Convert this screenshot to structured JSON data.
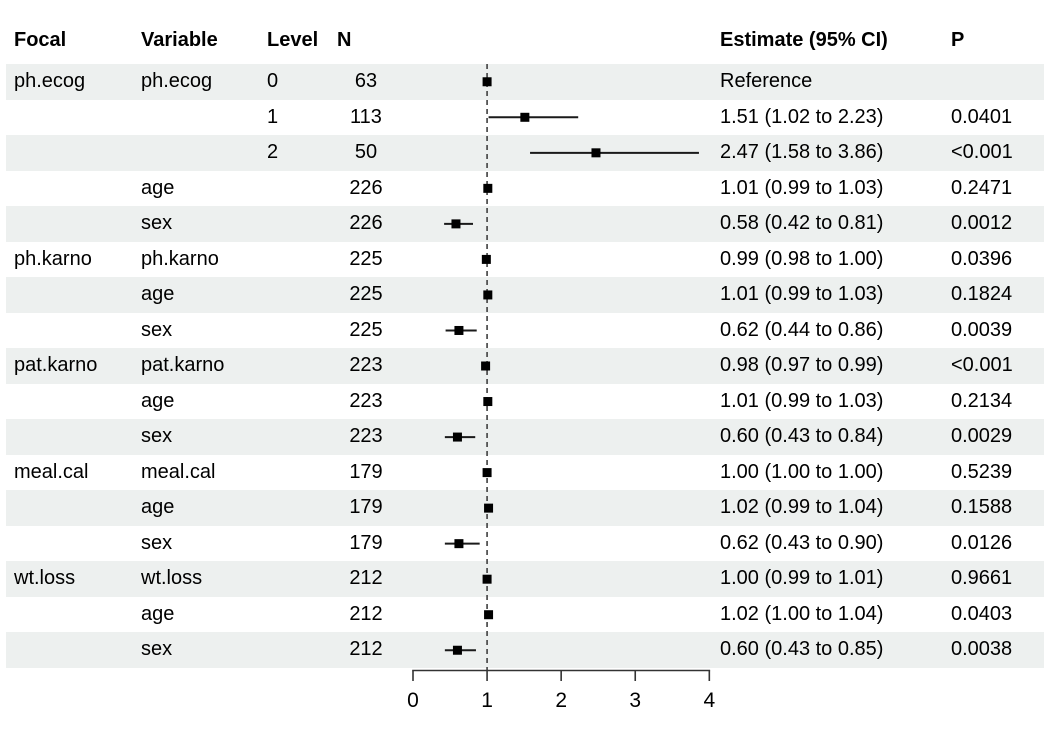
{
  "table": {
    "headers": {
      "focal": "Focal",
      "variable": "Variable",
      "level": "Level",
      "n": "N",
      "estimate": "Estimate (95% CI)",
      "p": "P"
    }
  },
  "chart_data": {
    "type": "scatter",
    "variant": "forest-plot",
    "x_axis": {
      "ticks": [
        "0",
        "1",
        "2",
        "3",
        "4"
      ],
      "tick_values": [
        0,
        1,
        2,
        3,
        4
      ],
      "range": [
        0,
        4
      ],
      "reference_line": 1
    },
    "legend": "none",
    "grid": false,
    "rows": [
      {
        "focal": "ph.ecog",
        "variable": "ph.ecog",
        "level": "0",
        "n": "63",
        "estimate": "Reference",
        "p": "",
        "point": 1.0,
        "low": 1.0,
        "high": 1.0,
        "reference": true
      },
      {
        "focal": "",
        "variable": "",
        "level": "1",
        "n": "113",
        "estimate": "1.51 (1.02 to 2.23)",
        "p": "0.0401",
        "point": 1.51,
        "low": 1.02,
        "high": 2.23,
        "reference": false
      },
      {
        "focal": "",
        "variable": "",
        "level": "2",
        "n": "50",
        "estimate": "2.47 (1.58 to 3.86)",
        "p": "<0.001",
        "point": 2.47,
        "low": 1.58,
        "high": 3.86,
        "reference": false
      },
      {
        "focal": "",
        "variable": "age",
        "level": "",
        "n": "226",
        "estimate": "1.01 (0.99 to 1.03)",
        "p": "0.2471",
        "point": 1.01,
        "low": 0.99,
        "high": 1.03,
        "reference": false
      },
      {
        "focal": "",
        "variable": "sex",
        "level": "",
        "n": "226",
        "estimate": "0.58 (0.42 to 0.81)",
        "p": "0.0012",
        "point": 0.58,
        "low": 0.42,
        "high": 0.81,
        "reference": false
      },
      {
        "focal": "ph.karno",
        "variable": "ph.karno",
        "level": "",
        "n": "225",
        "estimate": "0.99 (0.98 to 1.00)",
        "p": "0.0396",
        "point": 0.99,
        "low": 0.98,
        "high": 1.0,
        "reference": false
      },
      {
        "focal": "",
        "variable": "age",
        "level": "",
        "n": "225",
        "estimate": "1.01 (0.99 to 1.03)",
        "p": "0.1824",
        "point": 1.01,
        "low": 0.99,
        "high": 1.03,
        "reference": false
      },
      {
        "focal": "",
        "variable": "sex",
        "level": "",
        "n": "225",
        "estimate": "0.62 (0.44 to 0.86)",
        "p": "0.0039",
        "point": 0.62,
        "low": 0.44,
        "high": 0.86,
        "reference": false
      },
      {
        "focal": "pat.karno",
        "variable": "pat.karno",
        "level": "",
        "n": "223",
        "estimate": "0.98 (0.97 to 0.99)",
        "p": "<0.001",
        "point": 0.98,
        "low": 0.97,
        "high": 0.99,
        "reference": false
      },
      {
        "focal": "",
        "variable": "age",
        "level": "",
        "n": "223",
        "estimate": "1.01 (0.99 to 1.03)",
        "p": "0.2134",
        "point": 1.01,
        "low": 0.99,
        "high": 1.03,
        "reference": false
      },
      {
        "focal": "",
        "variable": "sex",
        "level": "",
        "n": "223",
        "estimate": "0.60 (0.43 to 0.84)",
        "p": "0.0029",
        "point": 0.6,
        "low": 0.43,
        "high": 0.84,
        "reference": false
      },
      {
        "focal": "meal.cal",
        "variable": "meal.cal",
        "level": "",
        "n": "179",
        "estimate": "1.00 (1.00 to 1.00)",
        "p": "0.5239",
        "point": 1.0,
        "low": 1.0,
        "high": 1.0,
        "reference": false
      },
      {
        "focal": "",
        "variable": "age",
        "level": "",
        "n": "179",
        "estimate": "1.02 (0.99 to 1.04)",
        "p": "0.1588",
        "point": 1.02,
        "low": 0.99,
        "high": 1.04,
        "reference": false
      },
      {
        "focal": "",
        "variable": "sex",
        "level": "",
        "n": "179",
        "estimate": "0.62 (0.43 to 0.90)",
        "p": "0.0126",
        "point": 0.62,
        "low": 0.43,
        "high": 0.9,
        "reference": false
      },
      {
        "focal": "wt.loss",
        "variable": "wt.loss",
        "level": "",
        "n": "212",
        "estimate": "1.00 (0.99 to 1.01)",
        "p": "0.9661",
        "point": 1.0,
        "low": 0.99,
        "high": 1.01,
        "reference": false
      },
      {
        "focal": "",
        "variable": "age",
        "level": "",
        "n": "212",
        "estimate": "1.02 (1.00 to 1.04)",
        "p": "0.0403",
        "point": 1.02,
        "low": 1.0,
        "high": 1.04,
        "reference": false
      },
      {
        "focal": "",
        "variable": "sex",
        "level": "",
        "n": "212",
        "estimate": "0.60 (0.43 to 0.85)",
        "p": "0.0038",
        "point": 0.6,
        "low": 0.43,
        "high": 0.85,
        "reference": false
      }
    ]
  },
  "colors": {
    "stripe": "#edf0ef",
    "marker": "#000000",
    "ci_line": "#1a1a1a",
    "reference_dash": "#4a4a4a",
    "axis": "#333333",
    "text": "#000000",
    "background": "#ffffff"
  }
}
